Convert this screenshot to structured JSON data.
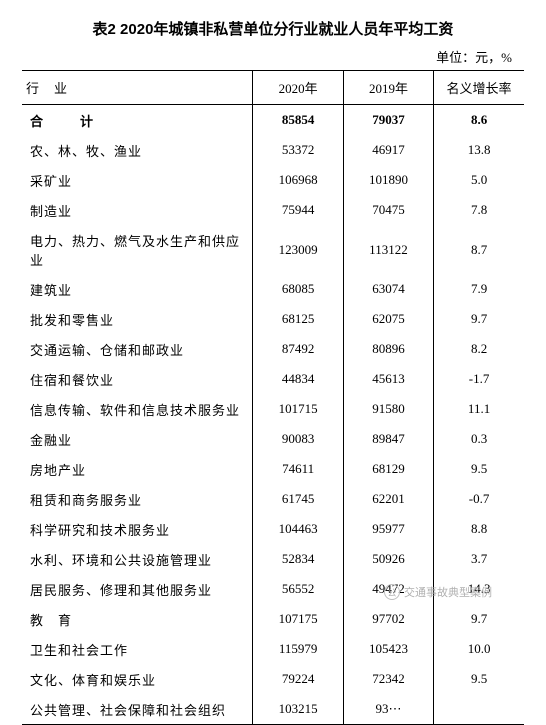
{
  "title": "表2 2020年城镇非私营单位分行业就业人员年平均工资",
  "unit": "单位：元，%",
  "headers": {
    "industry": "行　业",
    "y2020": "2020年",
    "y2019": "2019年",
    "growth": "名义增长率"
  },
  "total": {
    "label": "合　计",
    "y2020": "85854",
    "y2019": "79037",
    "growth": "8.6"
  },
  "rows": [
    {
      "label": "农、林、牧、渔业",
      "y2020": "53372",
      "y2019": "46917",
      "growth": "13.8"
    },
    {
      "label": "采矿业",
      "y2020": "106968",
      "y2019": "101890",
      "growth": "5.0"
    },
    {
      "label": "制造业",
      "y2020": "75944",
      "y2019": "70475",
      "growth": "7.8"
    },
    {
      "label": "电力、热力、燃气及水生产和供应业",
      "y2020": "123009",
      "y2019": "113122",
      "growth": "8.7"
    },
    {
      "label": "建筑业",
      "y2020": "68085",
      "y2019": "63074",
      "growth": "7.9"
    },
    {
      "label": "批发和零售业",
      "y2020": "68125",
      "y2019": "62075",
      "growth": "9.7"
    },
    {
      "label": "交通运输、仓储和邮政业",
      "y2020": "87492",
      "y2019": "80896",
      "growth": "8.2"
    },
    {
      "label": "住宿和餐饮业",
      "y2020": "44834",
      "y2019": "45613",
      "growth": "-1.7"
    },
    {
      "label": "信息传输、软件和信息技术服务业",
      "y2020": "101715",
      "y2019": "91580",
      "growth": "11.1"
    },
    {
      "label": "金融业",
      "y2020": "90083",
      "y2019": "89847",
      "growth": "0.3"
    },
    {
      "label": "房地产业",
      "y2020": "74611",
      "y2019": "68129",
      "growth": "9.5"
    },
    {
      "label": "租赁和商务服务业",
      "y2020": "61745",
      "y2019": "62201",
      "growth": "-0.7"
    },
    {
      "label": "科学研究和技术服务业",
      "y2020": "104463",
      "y2019": "95977",
      "growth": "8.8"
    },
    {
      "label": "水利、环境和公共设施管理业",
      "y2020": "52834",
      "y2019": "50926",
      "growth": "3.7"
    },
    {
      "label": "居民服务、修理和其他服务业",
      "y2020": "56552",
      "y2019": "49472",
      "growth": "14.3"
    },
    {
      "label": "教　育",
      "y2020": "107175",
      "y2019": "97702",
      "growth": "9.7"
    },
    {
      "label": "卫生和社会工作",
      "y2020": "115979",
      "y2019": "105423",
      "growth": "10.0"
    },
    {
      "label": "文化、体育和娱乐业",
      "y2020": "79224",
      "y2019": "72342",
      "growth": "9.5"
    },
    {
      "label": "公共管理、社会保障和社会组织",
      "y2020": "103215",
      "y2019": "93⋯",
      "growth": ""
    }
  ],
  "watermark": {
    "icon_text": "公",
    "text": "交通事故典型案例"
  },
  "style": {
    "background": "#ffffff",
    "text_color": "#000000",
    "border_color": "#000000",
    "watermark_color": "#b0b0b0",
    "title_fontsize": 15,
    "body_fontsize": 13
  }
}
